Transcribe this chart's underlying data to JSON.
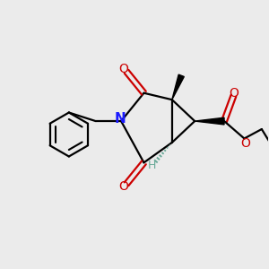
{
  "bg_color": "#ebebeb",
  "bond_color": "#000000",
  "N_color": "#1a1aff",
  "O_color": "#cc0000",
  "H_color": "#6aaa99",
  "line_width": 1.6,
  "fig_w": 3.0,
  "fig_h": 3.0,
  "dpi": 100,
  "xlim": [
    0,
    10
  ],
  "ylim": [
    0,
    10
  ]
}
